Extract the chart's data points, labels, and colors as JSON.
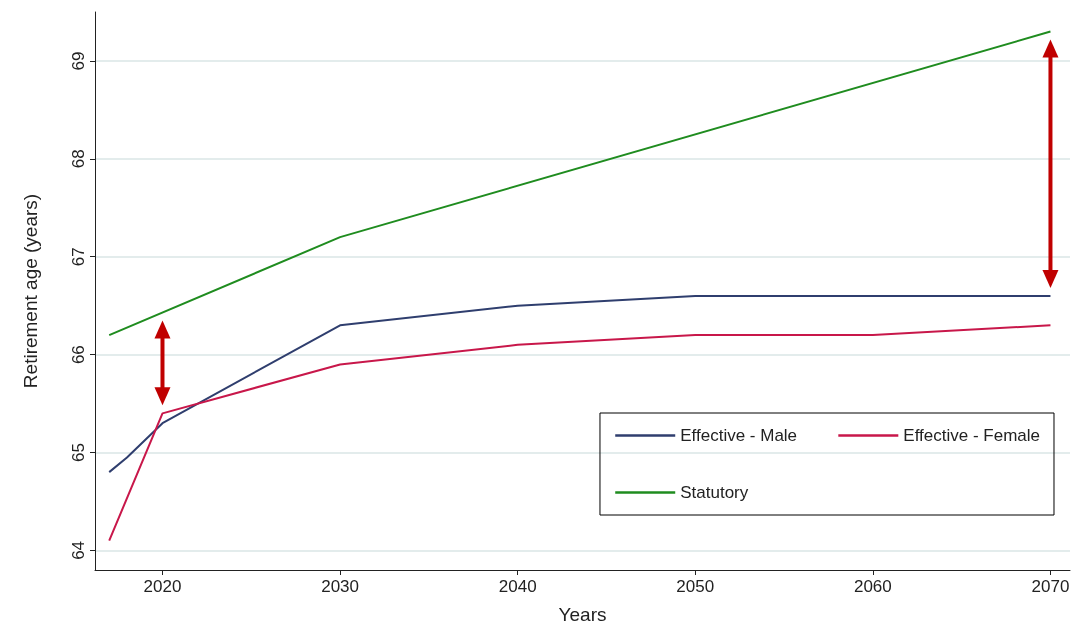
{
  "chart_data": {
    "type": "line",
    "xlabel": "Years",
    "ylabel": "Retirement age (years)",
    "xlim": [
      2016.2,
      2071.1
    ],
    "xticks": [
      2020,
      2030,
      2040,
      2050,
      2060,
      2070
    ],
    "ylim": [
      63.8,
      69.5
    ],
    "yticks": [
      64,
      65,
      66,
      67,
      68,
      69
    ],
    "grid": "y",
    "legend": "bottom right",
    "marker": "none",
    "line_style": "solid",
    "series": [
      {
        "name": "Effective - Male",
        "color": "#2f3e6e",
        "x": [
          2017,
          2018,
          2020,
          2030,
          2040,
          2050,
          2070
        ],
        "values": [
          64.8,
          64.95,
          65.3,
          66.3,
          66.5,
          66.6,
          66.6
        ]
      },
      {
        "name": "Effective - Female",
        "color": "#c8174a",
        "x": [
          2017,
          2020,
          2030,
          2040,
          2050,
          2060,
          2070
        ],
        "values": [
          64.1,
          65.4,
          65.9,
          66.1,
          66.2,
          66.2,
          66.3
        ]
      },
      {
        "name": "Statutory",
        "color": "#1f8c1f",
        "x": [
          2017,
          2030,
          2070
        ],
        "values": [
          66.2,
          67.2,
          69.3
        ]
      }
    ]
  }
}
